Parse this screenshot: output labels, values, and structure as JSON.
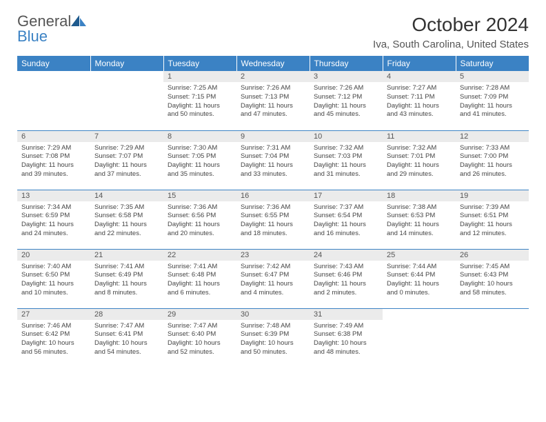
{
  "logo": {
    "text1": "General",
    "text2": "Blue"
  },
  "title": "October 2024",
  "location": "Iva, South Carolina, United States",
  "weekdays": [
    "Sunday",
    "Monday",
    "Tuesday",
    "Wednesday",
    "Thursday",
    "Friday",
    "Saturday"
  ],
  "colors": {
    "header_bg": "#3b82c4",
    "header_fg": "#ffffff",
    "daynum_bg": "#ebebeb",
    "border": "#3b82c4"
  },
  "weeks": [
    [
      null,
      null,
      {
        "n": "1",
        "sr": "7:25 AM",
        "ss": "7:15 PM",
        "dl": "11 hours and 50 minutes."
      },
      {
        "n": "2",
        "sr": "7:26 AM",
        "ss": "7:13 PM",
        "dl": "11 hours and 47 minutes."
      },
      {
        "n": "3",
        "sr": "7:26 AM",
        "ss": "7:12 PM",
        "dl": "11 hours and 45 minutes."
      },
      {
        "n": "4",
        "sr": "7:27 AM",
        "ss": "7:11 PM",
        "dl": "11 hours and 43 minutes."
      },
      {
        "n": "5",
        "sr": "7:28 AM",
        "ss": "7:09 PM",
        "dl": "11 hours and 41 minutes."
      }
    ],
    [
      {
        "n": "6",
        "sr": "7:29 AM",
        "ss": "7:08 PM",
        "dl": "11 hours and 39 minutes."
      },
      {
        "n": "7",
        "sr": "7:29 AM",
        "ss": "7:07 PM",
        "dl": "11 hours and 37 minutes."
      },
      {
        "n": "8",
        "sr": "7:30 AM",
        "ss": "7:05 PM",
        "dl": "11 hours and 35 minutes."
      },
      {
        "n": "9",
        "sr": "7:31 AM",
        "ss": "7:04 PM",
        "dl": "11 hours and 33 minutes."
      },
      {
        "n": "10",
        "sr": "7:32 AM",
        "ss": "7:03 PM",
        "dl": "11 hours and 31 minutes."
      },
      {
        "n": "11",
        "sr": "7:32 AM",
        "ss": "7:01 PM",
        "dl": "11 hours and 29 minutes."
      },
      {
        "n": "12",
        "sr": "7:33 AM",
        "ss": "7:00 PM",
        "dl": "11 hours and 26 minutes."
      }
    ],
    [
      {
        "n": "13",
        "sr": "7:34 AM",
        "ss": "6:59 PM",
        "dl": "11 hours and 24 minutes."
      },
      {
        "n": "14",
        "sr": "7:35 AM",
        "ss": "6:58 PM",
        "dl": "11 hours and 22 minutes."
      },
      {
        "n": "15",
        "sr": "7:36 AM",
        "ss": "6:56 PM",
        "dl": "11 hours and 20 minutes."
      },
      {
        "n": "16",
        "sr": "7:36 AM",
        "ss": "6:55 PM",
        "dl": "11 hours and 18 minutes."
      },
      {
        "n": "17",
        "sr": "7:37 AM",
        "ss": "6:54 PM",
        "dl": "11 hours and 16 minutes."
      },
      {
        "n": "18",
        "sr": "7:38 AM",
        "ss": "6:53 PM",
        "dl": "11 hours and 14 minutes."
      },
      {
        "n": "19",
        "sr": "7:39 AM",
        "ss": "6:51 PM",
        "dl": "11 hours and 12 minutes."
      }
    ],
    [
      {
        "n": "20",
        "sr": "7:40 AM",
        "ss": "6:50 PM",
        "dl": "11 hours and 10 minutes."
      },
      {
        "n": "21",
        "sr": "7:41 AM",
        "ss": "6:49 PM",
        "dl": "11 hours and 8 minutes."
      },
      {
        "n": "22",
        "sr": "7:41 AM",
        "ss": "6:48 PM",
        "dl": "11 hours and 6 minutes."
      },
      {
        "n": "23",
        "sr": "7:42 AM",
        "ss": "6:47 PM",
        "dl": "11 hours and 4 minutes."
      },
      {
        "n": "24",
        "sr": "7:43 AM",
        "ss": "6:46 PM",
        "dl": "11 hours and 2 minutes."
      },
      {
        "n": "25",
        "sr": "7:44 AM",
        "ss": "6:44 PM",
        "dl": "11 hours and 0 minutes."
      },
      {
        "n": "26",
        "sr": "7:45 AM",
        "ss": "6:43 PM",
        "dl": "10 hours and 58 minutes."
      }
    ],
    [
      {
        "n": "27",
        "sr": "7:46 AM",
        "ss": "6:42 PM",
        "dl": "10 hours and 56 minutes."
      },
      {
        "n": "28",
        "sr": "7:47 AM",
        "ss": "6:41 PM",
        "dl": "10 hours and 54 minutes."
      },
      {
        "n": "29",
        "sr": "7:47 AM",
        "ss": "6:40 PM",
        "dl": "10 hours and 52 minutes."
      },
      {
        "n": "30",
        "sr": "7:48 AM",
        "ss": "6:39 PM",
        "dl": "10 hours and 50 minutes."
      },
      {
        "n": "31",
        "sr": "7:49 AM",
        "ss": "6:38 PM",
        "dl": "10 hours and 48 minutes."
      },
      null,
      null
    ]
  ],
  "labels": {
    "sunrise": "Sunrise: ",
    "sunset": "Sunset: ",
    "daylight": "Daylight: "
  }
}
